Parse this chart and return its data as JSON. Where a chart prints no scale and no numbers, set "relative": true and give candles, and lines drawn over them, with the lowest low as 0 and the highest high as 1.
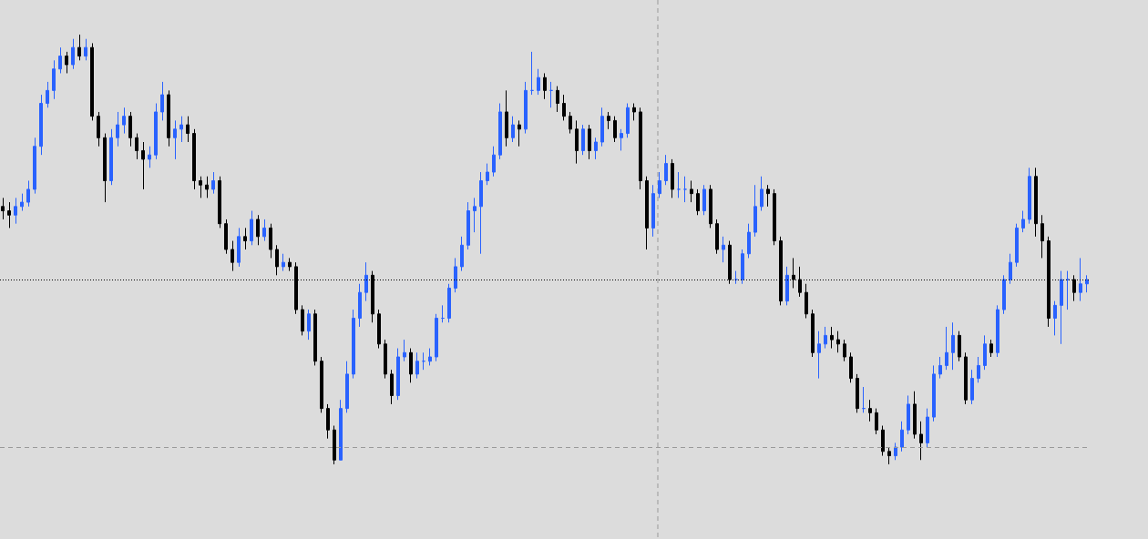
{
  "chart_data": {
    "type": "candlestick",
    "relative": true,
    "tick_labels": false,
    "grid": false,
    "categories": [
      null,
      null,
      null,
      null,
      null,
      null,
      null,
      null,
      null,
      null,
      null,
      null,
      null,
      null,
      null,
      null,
      null,
      null,
      null,
      null,
      null,
      null,
      null,
      null,
      null,
      null,
      null,
      null,
      null,
      null,
      null,
      null,
      null,
      null,
      null,
      null,
      null,
      null,
      null,
      null,
      null,
      null,
      null,
      null,
      null,
      null,
      null,
      null,
      null,
      null,
      null,
      null,
      null,
      null,
      null,
      null,
      null,
      null,
      null,
      null,
      null,
      null,
      null,
      null,
      null,
      null,
      null,
      null,
      null,
      null,
      null,
      null,
      null,
      null,
      null,
      null,
      null,
      null,
      null,
      null,
      null,
      null,
      null,
      null,
      null,
      null,
      null,
      null,
      null,
      null,
      null,
      null,
      null,
      null,
      null,
      null,
      null,
      null,
      null,
      null,
      null,
      null,
      null,
      null,
      null,
      null,
      null,
      null,
      null,
      null,
      null,
      null,
      null,
      null,
      null,
      null,
      null,
      null,
      null,
      null,
      null,
      null,
      null,
      null,
      null,
      null,
      null,
      null,
      null,
      null,
      null,
      null,
      null,
      null,
      null,
      null,
      null,
      null,
      null,
      null,
      null,
      null,
      null,
      null,
      null,
      null,
      null,
      null,
      null,
      null,
      null,
      null,
      null,
      null,
      null,
      null,
      null,
      null,
      null,
      null,
      null,
      null,
      null,
      null,
      null,
      null,
      null,
      null,
      null,
      null,
      null
    ],
    "ohlc": [
      [
        0.6,
        0.62,
        0.57,
        0.59
      ],
      [
        0.59,
        0.61,
        0.55,
        0.58
      ],
      [
        0.58,
        0.62,
        0.56,
        0.6
      ],
      [
        0.6,
        0.63,
        0.59,
        0.61
      ],
      [
        0.61,
        0.66,
        0.6,
        0.64
      ],
      [
        0.64,
        0.76,
        0.63,
        0.74
      ],
      [
        0.74,
        0.86,
        0.72,
        0.84
      ],
      [
        0.84,
        0.89,
        0.83,
        0.87
      ],
      [
        0.87,
        0.94,
        0.85,
        0.92
      ],
      [
        0.92,
        0.97,
        0.91,
        0.95
      ],
      [
        0.95,
        0.96,
        0.91,
        0.93
      ],
      [
        0.93,
        0.99,
        0.92,
        0.97
      ],
      [
        0.97,
        1.0,
        0.94,
        0.95
      ],
      [
        0.95,
        0.99,
        0.94,
        0.97
      ],
      [
        0.97,
        0.98,
        0.8,
        0.81
      ],
      [
        0.81,
        0.82,
        0.74,
        0.76
      ],
      [
        0.76,
        0.77,
        0.61,
        0.66
      ],
      [
        0.66,
        0.78,
        0.65,
        0.76
      ],
      [
        0.76,
        0.82,
        0.74,
        0.79
      ],
      [
        0.79,
        0.83,
        0.77,
        0.81
      ],
      [
        0.81,
        0.82,
        0.74,
        0.76
      ],
      [
        0.76,
        0.77,
        0.71,
        0.73
      ],
      [
        0.73,
        0.75,
        0.64,
        0.71
      ],
      [
        0.71,
        0.74,
        0.69,
        0.72
      ],
      [
        0.72,
        0.84,
        0.71,
        0.82
      ],
      [
        0.82,
        0.89,
        0.8,
        0.86
      ],
      [
        0.86,
        0.87,
        0.74,
        0.76
      ],
      [
        0.76,
        0.8,
        0.71,
        0.78
      ],
      [
        0.78,
        0.81,
        0.75,
        0.79
      ],
      [
        0.79,
        0.81,
        0.75,
        0.77
      ],
      [
        0.77,
        0.78,
        0.64,
        0.66
      ],
      [
        0.66,
        0.67,
        0.62,
        0.65
      ],
      [
        0.65,
        0.67,
        0.62,
        0.64
      ],
      [
        0.64,
        0.68,
        0.63,
        0.66
      ],
      [
        0.66,
        0.67,
        0.55,
        0.56
      ],
      [
        0.56,
        0.57,
        0.49,
        0.5
      ],
      [
        0.5,
        0.52,
        0.45,
        0.47
      ],
      [
        0.47,
        0.55,
        0.46,
        0.53
      ],
      [
        0.53,
        0.55,
        0.5,
        0.52
      ],
      [
        0.52,
        0.59,
        0.51,
        0.57
      ],
      [
        0.57,
        0.58,
        0.51,
        0.53
      ],
      [
        0.53,
        0.57,
        0.52,
        0.55
      ],
      [
        0.55,
        0.56,
        0.48,
        0.5
      ],
      [
        0.5,
        0.51,
        0.44,
        0.46
      ],
      [
        0.46,
        0.49,
        0.45,
        0.47
      ],
      [
        0.47,
        0.48,
        0.45,
        0.46
      ],
      [
        0.46,
        0.47,
        0.35,
        0.36
      ],
      [
        0.36,
        0.37,
        0.3,
        0.31
      ],
      [
        0.31,
        0.36,
        0.29,
        0.35
      ],
      [
        0.35,
        0.36,
        0.23,
        0.24
      ],
      [
        0.24,
        0.25,
        0.12,
        0.13
      ],
      [
        0.13,
        0.14,
        0.06,
        0.08
      ],
      [
        0.08,
        0.09,
        0.0,
        0.01
      ],
      [
        0.01,
        0.15,
        0.01,
        0.13
      ],
      [
        0.13,
        0.24,
        0.12,
        0.21
      ],
      [
        0.21,
        0.36,
        0.2,
        0.34
      ],
      [
        0.34,
        0.42,
        0.32,
        0.4
      ],
      [
        0.4,
        0.47,
        0.38,
        0.44
      ],
      [
        0.44,
        0.45,
        0.33,
        0.35
      ],
      [
        0.35,
        0.36,
        0.27,
        0.28
      ],
      [
        0.28,
        0.29,
        0.2,
        0.21
      ],
      [
        0.21,
        0.22,
        0.14,
        0.16
      ],
      [
        0.16,
        0.27,
        0.15,
        0.25
      ],
      [
        0.25,
        0.29,
        0.24,
        0.26
      ],
      [
        0.26,
        0.27,
        0.19,
        0.21
      ],
      [
        0.21,
        0.26,
        0.2,
        0.24
      ],
      [
        0.24,
        0.26,
        0.22,
        0.24
      ],
      [
        0.24,
        0.27,
        0.23,
        0.25
      ],
      [
        0.25,
        0.35,
        0.24,
        0.34
      ],
      [
        0.34,
        0.37,
        0.33,
        0.34
      ],
      [
        0.34,
        0.42,
        0.33,
        0.41
      ],
      [
        0.41,
        0.48,
        0.4,
        0.46
      ],
      [
        0.46,
        0.53,
        0.45,
        0.51
      ],
      [
        0.51,
        0.61,
        0.5,
        0.59
      ],
      [
        0.59,
        0.62,
        0.54,
        0.6
      ],
      [
        0.6,
        0.68,
        0.49,
        0.66
      ],
      [
        0.66,
        0.7,
        0.65,
        0.68
      ],
      [
        0.68,
        0.74,
        0.67,
        0.72
      ],
      [
        0.72,
        0.84,
        0.71,
        0.82
      ],
      [
        0.82,
        0.87,
        0.74,
        0.76
      ],
      [
        0.76,
        0.81,
        0.75,
        0.79
      ],
      [
        0.79,
        0.8,
        0.74,
        0.78
      ],
      [
        0.78,
        0.89,
        0.77,
        0.87
      ],
      [
        0.87,
        0.96,
        0.86,
        0.87
      ],
      [
        0.87,
        0.92,
        0.86,
        0.9
      ],
      [
        0.9,
        0.91,
        0.85,
        0.87
      ],
      [
        0.87,
        0.89,
        0.83,
        0.87
      ],
      [
        0.87,
        0.88,
        0.82,
        0.84
      ],
      [
        0.84,
        0.86,
        0.8,
        0.81
      ],
      [
        0.81,
        0.82,
        0.77,
        0.78
      ],
      [
        0.78,
        0.8,
        0.7,
        0.73
      ],
      [
        0.73,
        0.79,
        0.72,
        0.78
      ],
      [
        0.78,
        0.79,
        0.71,
        0.73
      ],
      [
        0.73,
        0.76,
        0.71,
        0.75
      ],
      [
        0.75,
        0.83,
        0.74,
        0.81
      ],
      [
        0.81,
        0.82,
        0.78,
        0.8
      ],
      [
        0.8,
        0.81,
        0.75,
        0.76
      ],
      [
        0.76,
        0.78,
        0.73,
        0.77
      ],
      [
        0.77,
        0.84,
        0.76,
        0.83
      ],
      [
        0.83,
        0.84,
        0.8,
        0.82
      ],
      [
        0.82,
        0.83,
        0.64,
        0.66
      ],
      [
        0.66,
        0.67,
        0.5,
        0.55
      ],
      [
        0.55,
        0.65,
        0.53,
        0.63
      ],
      [
        0.63,
        0.68,
        0.62,
        0.66
      ],
      [
        0.66,
        0.72,
        0.65,
        0.7
      ],
      [
        0.7,
        0.71,
        0.62,
        0.64
      ],
      [
        0.64,
        0.68,
        0.62,
        0.64
      ],
      [
        0.64,
        0.67,
        0.61,
        0.64
      ],
      [
        0.64,
        0.66,
        0.61,
        0.63
      ],
      [
        0.63,
        0.64,
        0.58,
        0.59
      ],
      [
        0.59,
        0.65,
        0.58,
        0.64
      ],
      [
        0.64,
        0.65,
        0.55,
        0.56
      ],
      [
        0.56,
        0.57,
        0.49,
        0.5
      ],
      [
        0.5,
        0.53,
        0.47,
        0.51
      ],
      [
        0.51,
        0.52,
        0.42,
        0.43
      ],
      [
        0.43,
        0.45,
        0.42,
        0.43
      ],
      [
        0.43,
        0.5,
        0.42,
        0.49
      ],
      [
        0.49,
        0.56,
        0.48,
        0.54
      ],
      [
        0.54,
        0.65,
        0.53,
        0.6
      ],
      [
        0.6,
        0.67,
        0.59,
        0.64
      ],
      [
        0.64,
        0.65,
        0.6,
        0.63
      ],
      [
        0.63,
        0.64,
        0.51,
        0.52
      ],
      [
        0.52,
        0.53,
        0.37,
        0.38
      ],
      [
        0.38,
        0.46,
        0.37,
        0.44
      ],
      [
        0.44,
        0.48,
        0.41,
        0.43
      ],
      [
        0.43,
        0.46,
        0.39,
        0.4
      ],
      [
        0.4,
        0.42,
        0.34,
        0.35
      ],
      [
        0.35,
        0.36,
        0.25,
        0.26
      ],
      [
        0.26,
        0.31,
        0.2,
        0.28
      ],
      [
        0.28,
        0.32,
        0.27,
        0.3
      ],
      [
        0.3,
        0.32,
        0.27,
        0.29
      ],
      [
        0.29,
        0.31,
        0.26,
        0.28
      ],
      [
        0.28,
        0.29,
        0.24,
        0.25
      ],
      [
        0.25,
        0.26,
        0.19,
        0.2
      ],
      [
        0.2,
        0.21,
        0.12,
        0.13
      ],
      [
        0.13,
        0.18,
        0.12,
        0.13
      ],
      [
        0.13,
        0.15,
        0.1,
        0.12
      ],
      [
        0.12,
        0.13,
        0.07,
        0.08
      ],
      [
        0.08,
        0.09,
        0.02,
        0.03
      ],
      [
        0.03,
        0.04,
        0.0,
        0.02
      ],
      [
        0.02,
        0.05,
        0.01,
        0.04
      ],
      [
        0.04,
        0.1,
        0.03,
        0.08
      ],
      [
        0.08,
        0.16,
        0.07,
        0.14
      ],
      [
        0.14,
        0.17,
        0.06,
        0.07
      ],
      [
        0.07,
        0.1,
        0.01,
        0.05
      ],
      [
        0.05,
        0.13,
        0.04,
        0.11
      ],
      [
        0.11,
        0.23,
        0.1,
        0.21
      ],
      [
        0.21,
        0.25,
        0.2,
        0.23
      ],
      [
        0.23,
        0.32,
        0.22,
        0.26
      ],
      [
        0.26,
        0.33,
        0.22,
        0.3
      ],
      [
        0.3,
        0.31,
        0.24,
        0.25
      ],
      [
        0.25,
        0.26,
        0.14,
        0.15
      ],
      [
        0.15,
        0.22,
        0.14,
        0.2
      ],
      [
        0.2,
        0.25,
        0.19,
        0.23
      ],
      [
        0.23,
        0.3,
        0.22,
        0.28
      ],
      [
        0.28,
        0.29,
        0.25,
        0.26
      ],
      [
        0.26,
        0.37,
        0.25,
        0.36
      ],
      [
        0.36,
        0.44,
        0.35,
        0.43
      ],
      [
        0.43,
        0.49,
        0.42,
        0.47
      ],
      [
        0.47,
        0.56,
        0.46,
        0.55
      ],
      [
        0.55,
        0.59,
        0.54,
        0.57
      ],
      [
        0.57,
        0.69,
        0.56,
        0.67
      ],
      [
        0.67,
        0.69,
        0.53,
        0.56
      ],
      [
        0.56,
        0.58,
        0.48,
        0.52
      ],
      [
        0.52,
        0.53,
        0.32,
        0.34
      ],
      [
        0.34,
        0.38,
        0.3,
        0.37
      ],
      [
        0.37,
        0.45,
        0.28,
        0.43
      ],
      [
        0.43,
        0.45,
        0.36,
        0.43
      ],
      [
        0.43,
        0.44,
        0.38,
        0.4
      ],
      [
        0.4,
        0.48,
        0.38,
        0.42
      ],
      [
        0.42,
        0.44,
        0.4,
        0.43
      ]
    ],
    "ref_lines": [
      {
        "axis": "y",
        "value": 0.43,
        "color": "#000000",
        "line_style": "dotted"
      },
      {
        "axis": "y",
        "value": 0.04,
        "color": "#999999",
        "line_style": "dashed"
      }
    ]
  }
}
